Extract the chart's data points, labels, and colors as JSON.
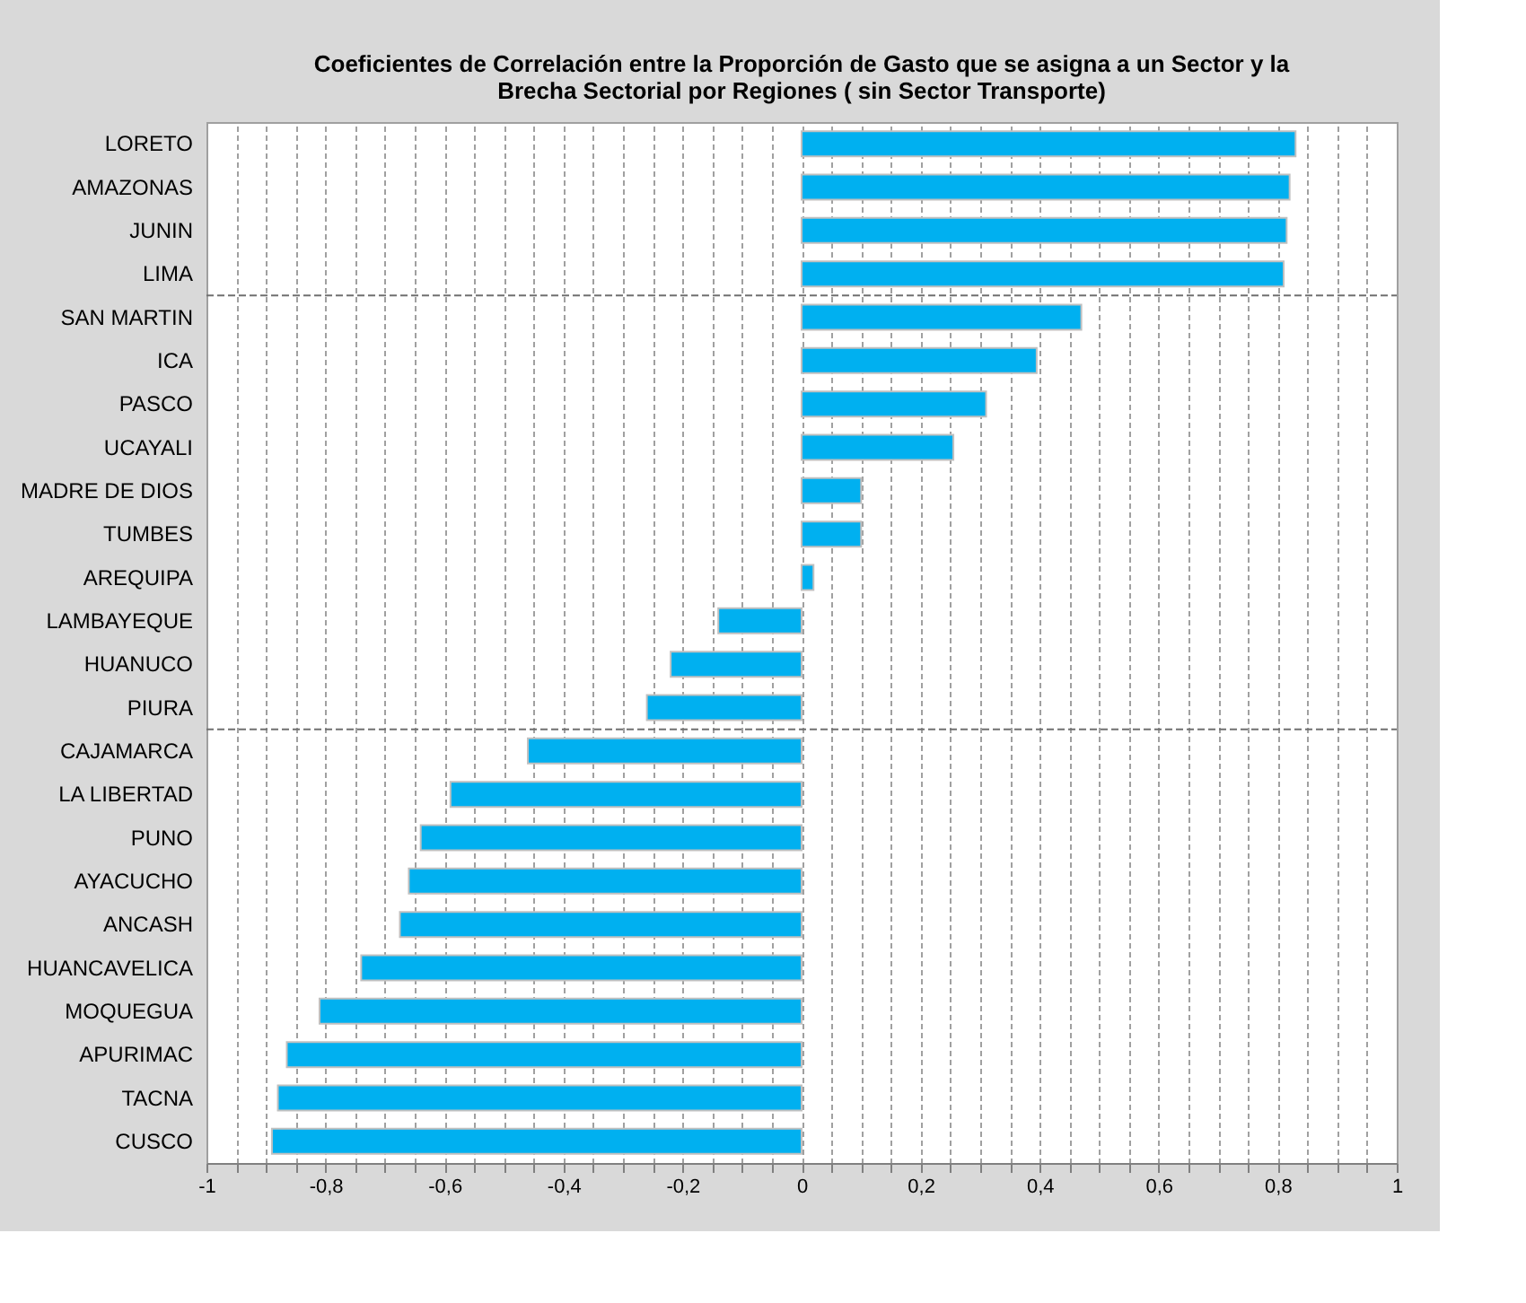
{
  "chart_data": {
    "type": "bar",
    "orientation": "horizontal",
    "title": [
      "Coeficientes de Correlación entre la Proporción de Gasto que se asigna a un Sector y la",
      "Brecha Sectorial por Regiones ( sin Sector Transporte)"
    ],
    "categories": [
      "LORETO",
      "AMAZONAS",
      "JUNIN",
      "LIMA",
      "SAN MARTIN",
      "ICA",
      "PASCO",
      "UCAYALI",
      "MADRE DE DIOS",
      "TUMBES",
      "AREQUIPA",
      "LAMBAYEQUE",
      "HUANUCO",
      "PIURA",
      "CAJAMARCA",
      "LA LIBERTAD",
      "PUNO",
      "AYACUCHO",
      "ANCASH",
      "HUANCAVELICA",
      "MOQUEGUA",
      "APURIMAC",
      "TACNA",
      "CUSCO"
    ],
    "values": [
      0.83,
      0.82,
      0.815,
      0.81,
      0.47,
      0.395,
      0.31,
      0.255,
      0.1,
      0.1,
      0.02,
      -0.14,
      -0.22,
      -0.26,
      -0.46,
      -0.59,
      -0.64,
      -0.66,
      -0.675,
      -0.74,
      -0.81,
      -0.865,
      -0.88,
      -0.89
    ],
    "color": "#00b0f0",
    "xlim": [
      -1,
      1
    ],
    "xticks": [
      -1,
      {
        "value": -0.95,
        "label": null
      },
      {
        "value": -0.9,
        "label": null
      },
      {
        "value": -0.85,
        "label": null
      },
      {
        "value": -0.8,
        "label": "-0,8"
      },
      {
        "value": -0.75,
        "label": null
      },
      {
        "value": -0.7,
        "label": null
      },
      {
        "value": -0.65,
        "label": null
      },
      {
        "value": -0.6,
        "label": "-0,6"
      },
      {
        "value": -0.55,
        "label": null
      },
      {
        "value": -0.5,
        "label": null
      },
      {
        "value": -0.45,
        "label": null
      },
      {
        "value": -0.4,
        "label": "-0,4"
      },
      {
        "value": -0.35,
        "label": null
      },
      {
        "value": -0.3,
        "label": null
      },
      {
        "value": -0.25,
        "label": null
      },
      {
        "value": -0.2,
        "label": "-0,2"
      },
      {
        "value": -0.15,
        "label": null
      },
      {
        "value": -0.1,
        "label": null
      },
      {
        "value": -0.05,
        "label": null
      },
      0,
      {
        "value": 0.05,
        "label": null
      },
      {
        "value": 0.1,
        "label": null
      },
      {
        "value": 0.15,
        "label": null
      },
      {
        "value": 0.2,
        "label": "0,2"
      },
      {
        "value": 0.25,
        "label": null
      },
      {
        "value": 0.3,
        "label": null
      },
      {
        "value": 0.35,
        "label": null
      },
      {
        "value": 0.4,
        "label": "0,4"
      },
      {
        "value": 0.45,
        "label": null
      },
      {
        "value": 0.5,
        "label": null
      },
      {
        "value": 0.55,
        "label": null
      },
      {
        "value": 0.6,
        "label": "0,6"
      },
      {
        "value": 0.65,
        "label": null
      },
      {
        "value": 0.7,
        "label": null
      },
      {
        "value": 0.75,
        "label": null
      },
      {
        "value": 0.8,
        "label": "0,8"
      },
      {
        "value": 0.85,
        "label": null
      },
      {
        "value": 0.9,
        "label": null
      },
      {
        "value": 0.95,
        "label": null
      },
      1
    ],
    "grid": "x",
    "ref_lines": [
      {
        "axis": "y",
        "value": "LIMA",
        "line_style": "dashed"
      },
      {
        "axis": "y",
        "value": "PIURA",
        "line_style": "dashed"
      }
    ]
  }
}
